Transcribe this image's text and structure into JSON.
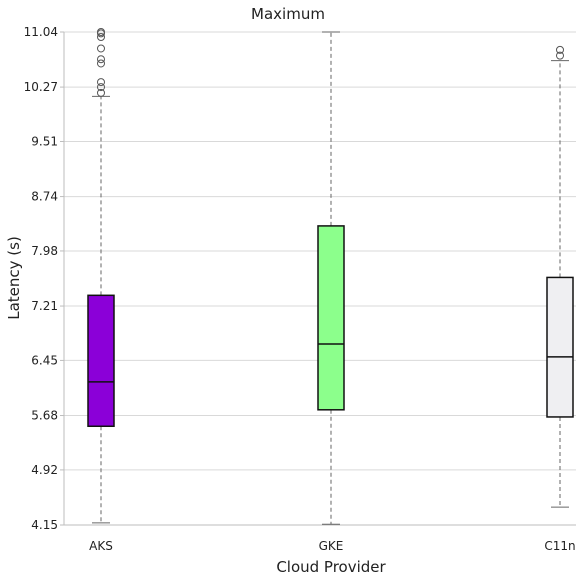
{
  "chart_data": {
    "type": "box",
    "title": "Maximum",
    "xlabel": "Cloud Provider",
    "ylabel": "Latency (s)",
    "ylim": [
      4.15,
      11.04
    ],
    "yticks": [
      "4.15",
      "4.92",
      "5.68",
      "6.45",
      "7.21",
      "7.98",
      "8.74",
      "9.51",
      "10.27",
      "11.04"
    ],
    "grid": true,
    "categories": [
      "AKS",
      "GKE",
      "C11n"
    ],
    "boxes": [
      {
        "category": "AKS",
        "color": "#8B00D8",
        "whisker_low": 4.18,
        "q1": 5.53,
        "median": 6.15,
        "q3": 7.36,
        "whisker_high": 10.14,
        "outliers": [
          10.19,
          10.27,
          10.34,
          10.6,
          10.66,
          10.81,
          10.97,
          11.02,
          11.04
        ]
      },
      {
        "category": "GKE",
        "color": "#8CFF8C",
        "whisker_low": 4.16,
        "q1": 5.76,
        "median": 6.68,
        "q3": 8.33,
        "whisker_high": 11.04,
        "outliers": []
      },
      {
        "category": "C11n",
        "color": "#EFEFF2",
        "whisker_low": 4.4,
        "q1": 5.66,
        "median": 6.5,
        "q3": 7.61,
        "whisker_high": 10.64,
        "outliers": [
          10.71,
          10.79
        ]
      }
    ]
  }
}
